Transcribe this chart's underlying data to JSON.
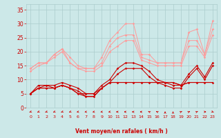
{
  "x": [
    0,
    1,
    2,
    3,
    4,
    5,
    6,
    7,
    8,
    9,
    10,
    11,
    12,
    13,
    14,
    15,
    16,
    17,
    18,
    19,
    20,
    21,
    22,
    23
  ],
  "line1": [
    14,
    16,
    16,
    19,
    21,
    18,
    15,
    14,
    14,
    18,
    24,
    27,
    30,
    30,
    19,
    19,
    16,
    16,
    16,
    16,
    27,
    28,
    19,
    31
  ],
  "line2": [
    14,
    16,
    16,
    19,
    21,
    16,
    14,
    14,
    14,
    16,
    22,
    25,
    26,
    26,
    18,
    17,
    16,
    16,
    16,
    16,
    24,
    24,
    19,
    28
  ],
  "line3": [
    13,
    15,
    16,
    18,
    20,
    16,
    14,
    13,
    13,
    15,
    20,
    22,
    24,
    24,
    17,
    16,
    15,
    15,
    15,
    15,
    22,
    22,
    18,
    26
  ],
  "line4": [
    5,
    8,
    8,
    8,
    9,
    8,
    7,
    5,
    5,
    8,
    10,
    14,
    16,
    16,
    15,
    13,
    10,
    9,
    8,
    8,
    12,
    15,
    11,
    16
  ],
  "line5": [
    5,
    7,
    8,
    7,
    8,
    7,
    6,
    4,
    4,
    7,
    9,
    12,
    14,
    14,
    14,
    11,
    9,
    8,
    7,
    7,
    11,
    14,
    10,
    15
  ],
  "line6": [
    5,
    7,
    7,
    7,
    8,
    7,
    5,
    5,
    5,
    7,
    9,
    9,
    9,
    9,
    9,
    9,
    9,
    9,
    9,
    8,
    9,
    9,
    9,
    9
  ],
  "line7": [
    5,
    7,
    7,
    7,
    8,
    7,
    5,
    4,
    4,
    7,
    9,
    9,
    9,
    9,
    9,
    9,
    9,
    9,
    9,
    8,
    9,
    9,
    9,
    9
  ],
  "wind_dirs": [
    225,
    225,
    225,
    225,
    225,
    225,
    247,
    247,
    247,
    247,
    247,
    270,
    270,
    270,
    270,
    315,
    315,
    0,
    0,
    45,
    45,
    45,
    90,
    135
  ],
  "background_color": "#cce8e8",
  "grid_color": "#aacccc",
  "light_red": "#ff9999",
  "dark_red": "#cc0000",
  "xlabel": "Vent moyen/en rafales ( km/h )",
  "xlabel_color": "#cc0000",
  "tick_color": "#cc0000",
  "ylim": [
    0,
    37
  ],
  "xlim": [
    -0.5,
    23.5
  ],
  "yticks": [
    0,
    5,
    10,
    15,
    20,
    25,
    30,
    35
  ]
}
